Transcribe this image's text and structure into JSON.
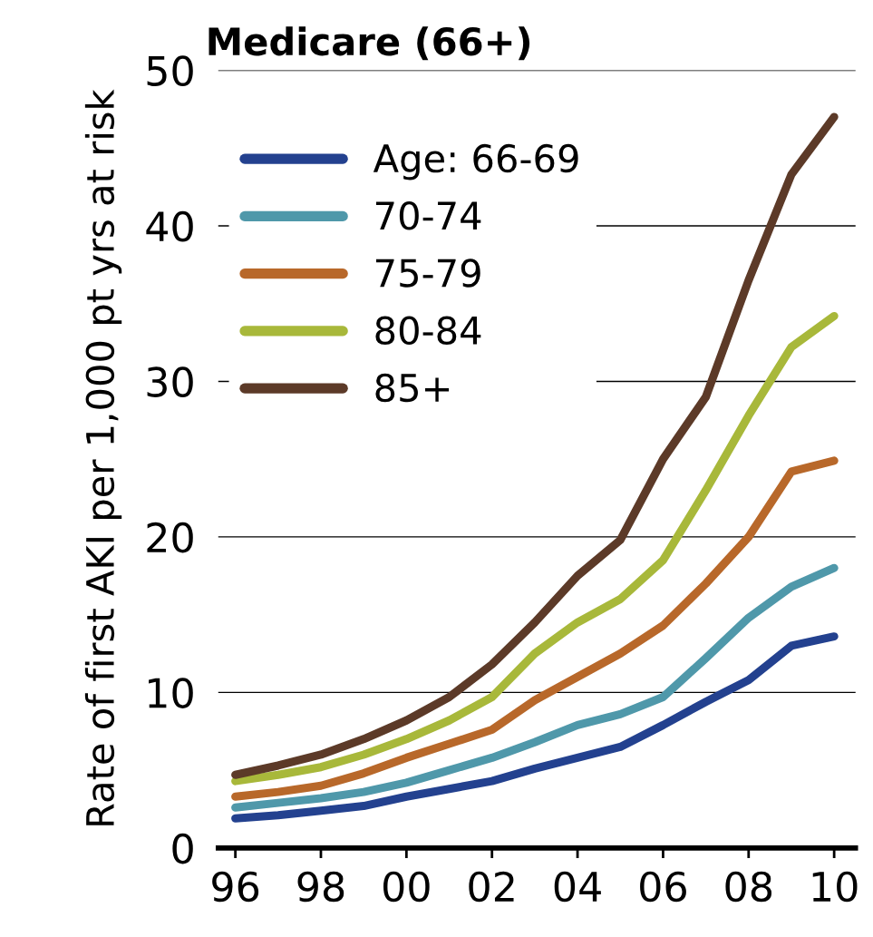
{
  "chart_data": {
    "type": "line",
    "title": "Medicare (66+)",
    "ylabel": "Rate of first AKI per 1,000 pt yrs at risk",
    "x": [
      1996,
      1997,
      1998,
      1999,
      2000,
      2001,
      2002,
      2003,
      2004,
      2005,
      2006,
      2007,
      2008,
      2009,
      2010
    ],
    "series": [
      {
        "name": "Age: 66-69",
        "color": "#23418f",
        "values": [
          1.9,
          2.1,
          2.4,
          2.7,
          3.3,
          3.8,
          4.3,
          5.1,
          5.8,
          6.5,
          7.9,
          9.4,
          10.8,
          13.0,
          13.6
        ]
      },
      {
        "name": "70-74",
        "color": "#4f98aa",
        "values": [
          2.6,
          2.9,
          3.2,
          3.6,
          4.2,
          5.0,
          5.8,
          6.8,
          7.9,
          8.6,
          9.7,
          12.2,
          14.8,
          16.8,
          18.0
        ]
      },
      {
        "name": "75-79",
        "color": "#b8682a",
        "values": [
          3.3,
          3.6,
          4.0,
          4.8,
          5.8,
          6.7,
          7.6,
          9.5,
          11.0,
          12.5,
          14.3,
          17.0,
          20.0,
          24.2,
          24.9
        ]
      },
      {
        "name": "80-84",
        "color": "#a8b83a",
        "values": [
          4.3,
          4.7,
          5.2,
          6.0,
          7.0,
          8.2,
          9.7,
          12.5,
          14.5,
          16.0,
          18.5,
          23.0,
          27.8,
          32.2,
          34.2
        ]
      },
      {
        "name": "85+",
        "color": "#5c3a28",
        "values": [
          4.7,
          5.3,
          6.0,
          7.0,
          8.2,
          9.7,
          11.8,
          14.5,
          17.5,
          19.8,
          25.0,
          29.0,
          36.5,
          43.3,
          47.0
        ]
      }
    ],
    "xlim": [
      1995.6,
      2010.5
    ],
    "xticks": [
      {
        "value": 1996,
        "label": "96"
      },
      {
        "value": 1998,
        "label": "98"
      },
      {
        "value": 2000,
        "label": "00"
      },
      {
        "value": 2002,
        "label": "02"
      },
      {
        "value": 2004,
        "label": "04"
      },
      {
        "value": 2006,
        "label": "06"
      },
      {
        "value": 2008,
        "label": "08"
      },
      {
        "value": 2010,
        "label": "10"
      }
    ],
    "ylim": [
      0,
      50
    ],
    "yticks": [
      0,
      10,
      20,
      30,
      40,
      50
    ],
    "grid": "y",
    "legend": "top left",
    "marker": "none",
    "line_style": "solid"
  }
}
